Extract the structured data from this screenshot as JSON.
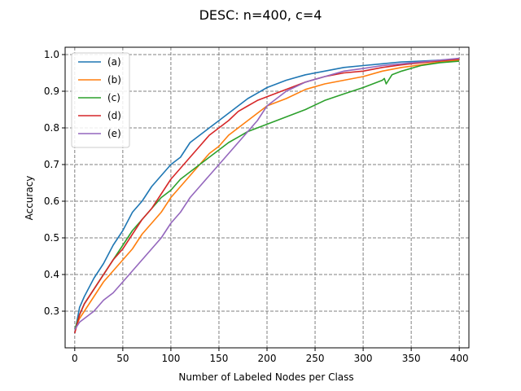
{
  "chart_data": {
    "type": "line",
    "title": "DESC: n=400, c=4",
    "xlabel": "Number of Labeled Nodes per Class",
    "ylabel": "Accuracy",
    "xlim": [
      -10,
      410
    ],
    "ylim": [
      0.2,
      1.02
    ],
    "xticks": [
      0,
      50,
      100,
      150,
      200,
      250,
      300,
      350,
      400
    ],
    "xtick_labels": [
      "0",
      "50",
      "100",
      "150",
      "200",
      "250",
      "300",
      "350",
      "400"
    ],
    "yticks": [
      0.3,
      0.4,
      0.5,
      0.6,
      0.7,
      0.8,
      0.9,
      1.0
    ],
    "ytick_labels": [
      "0.3",
      "0.4",
      "0.5",
      "0.6",
      "0.7",
      "0.8",
      "0.9",
      "1.0"
    ],
    "grid": true,
    "legend_position": "upper-left",
    "series": [
      {
        "name": "(a)",
        "color": "#1f77b4",
        "x": [
          0,
          5,
          10,
          20,
          30,
          40,
          50,
          60,
          70,
          80,
          90,
          100,
          110,
          120,
          130,
          140,
          150,
          160,
          170,
          180,
          190,
          200,
          220,
          240,
          260,
          280,
          300,
          320,
          340,
          360,
          380,
          400
        ],
        "y": [
          0.24,
          0.31,
          0.34,
          0.39,
          0.43,
          0.48,
          0.52,
          0.57,
          0.6,
          0.64,
          0.67,
          0.7,
          0.72,
          0.76,
          0.78,
          0.8,
          0.82,
          0.84,
          0.86,
          0.88,
          0.895,
          0.91,
          0.93,
          0.945,
          0.955,
          0.965,
          0.97,
          0.975,
          0.98,
          0.982,
          0.985,
          0.987
        ]
      },
      {
        "name": "(b)",
        "color": "#ff7f0e",
        "x": [
          0,
          5,
          10,
          20,
          30,
          40,
          50,
          60,
          70,
          80,
          90,
          100,
          110,
          120,
          130,
          140,
          150,
          160,
          170,
          180,
          190,
          200,
          220,
          240,
          260,
          280,
          300,
          320,
          340,
          360,
          380,
          400
        ],
        "y": [
          0.25,
          0.28,
          0.3,
          0.34,
          0.38,
          0.41,
          0.44,
          0.47,
          0.51,
          0.54,
          0.57,
          0.61,
          0.64,
          0.67,
          0.7,
          0.73,
          0.75,
          0.78,
          0.8,
          0.82,
          0.84,
          0.86,
          0.88,
          0.905,
          0.92,
          0.93,
          0.94,
          0.955,
          0.965,
          0.972,
          0.98,
          0.985
        ]
      },
      {
        "name": "(c)",
        "color": "#2ca02c",
        "x": [
          0,
          5,
          10,
          20,
          30,
          40,
          50,
          60,
          70,
          80,
          90,
          100,
          110,
          120,
          130,
          140,
          150,
          160,
          170,
          180,
          190,
          200,
          220,
          240,
          260,
          280,
          300,
          320,
          322,
          324,
          330,
          340,
          360,
          380,
          400
        ],
        "y": [
          0.25,
          0.29,
          0.32,
          0.36,
          0.4,
          0.44,
          0.48,
          0.52,
          0.55,
          0.58,
          0.61,
          0.63,
          0.66,
          0.68,
          0.7,
          0.72,
          0.74,
          0.76,
          0.775,
          0.79,
          0.8,
          0.81,
          0.83,
          0.85,
          0.875,
          0.893,
          0.91,
          0.93,
          0.935,
          0.92,
          0.945,
          0.955,
          0.97,
          0.978,
          0.982
        ]
      },
      {
        "name": "(d)",
        "color": "#d62728",
        "x": [
          0,
          5,
          10,
          20,
          30,
          40,
          50,
          60,
          70,
          80,
          90,
          100,
          110,
          120,
          130,
          140,
          150,
          160,
          170,
          180,
          190,
          200,
          220,
          240,
          260,
          280,
          300,
          320,
          340,
          360,
          380,
          400
        ],
        "y": [
          0.24,
          0.29,
          0.32,
          0.36,
          0.4,
          0.44,
          0.47,
          0.51,
          0.55,
          0.58,
          0.62,
          0.66,
          0.69,
          0.72,
          0.75,
          0.78,
          0.8,
          0.82,
          0.845,
          0.86,
          0.875,
          0.885,
          0.905,
          0.925,
          0.94,
          0.95,
          0.955,
          0.965,
          0.972,
          0.978,
          0.983,
          0.988
        ]
      },
      {
        "name": "(e)",
        "color": "#9467bd",
        "x": [
          0,
          5,
          10,
          20,
          30,
          40,
          50,
          60,
          70,
          80,
          90,
          100,
          110,
          120,
          130,
          140,
          150,
          160,
          170,
          180,
          190,
          200,
          220,
          240,
          260,
          280,
          300,
          320,
          340,
          360,
          380,
          400
        ],
        "y": [
          0.25,
          0.27,
          0.28,
          0.3,
          0.33,
          0.35,
          0.38,
          0.41,
          0.44,
          0.47,
          0.5,
          0.54,
          0.57,
          0.61,
          0.64,
          0.67,
          0.7,
          0.73,
          0.76,
          0.79,
          0.82,
          0.86,
          0.9,
          0.925,
          0.94,
          0.955,
          0.962,
          0.97,
          0.975,
          0.98,
          0.985,
          0.99
        ]
      }
    ]
  }
}
